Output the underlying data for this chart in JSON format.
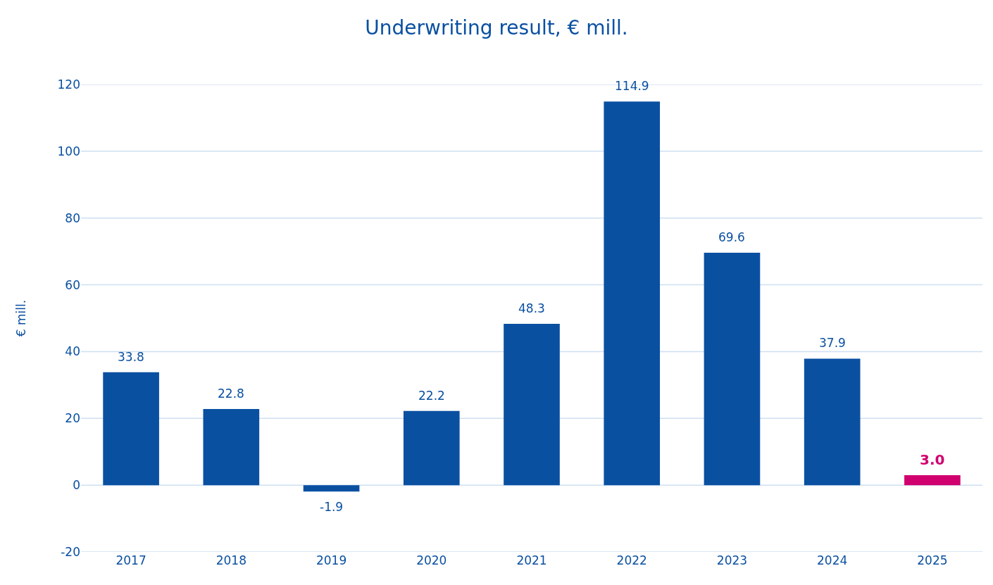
{
  "chart_data": {
    "type": "bar",
    "title": "Underwriting result, € mill.",
    "ylabel": "€ mill.",
    "categories": [
      "2017",
      "2018",
      "2019",
      "2020",
      "2021",
      "2022",
      "2023",
      "2024",
      "2025"
    ],
    "values": [
      33.8,
      22.8,
      -1.9,
      22.2,
      48.3,
      114.9,
      69.6,
      37.9,
      3.0
    ],
    "value_labels": [
      "33.8",
      "22.8",
      "-1.9",
      "22.2",
      "48.3",
      "114.9",
      "69.6",
      "37.9",
      "3.0"
    ],
    "color": "#0a50a1",
    "colors": [
      "#0a50a1",
      "#0a50a1",
      "#0a50a1",
      "#0a50a1",
      "#0a50a1",
      "#0a50a1",
      "#0a50a1",
      "#0a50a1",
      "#d0006f"
    ],
    "ylim": [
      -20,
      120
    ],
    "yticks": [
      -20,
      0,
      20,
      40,
      60,
      80,
      100,
      120
    ],
    "grid": "y",
    "legend": false
  }
}
